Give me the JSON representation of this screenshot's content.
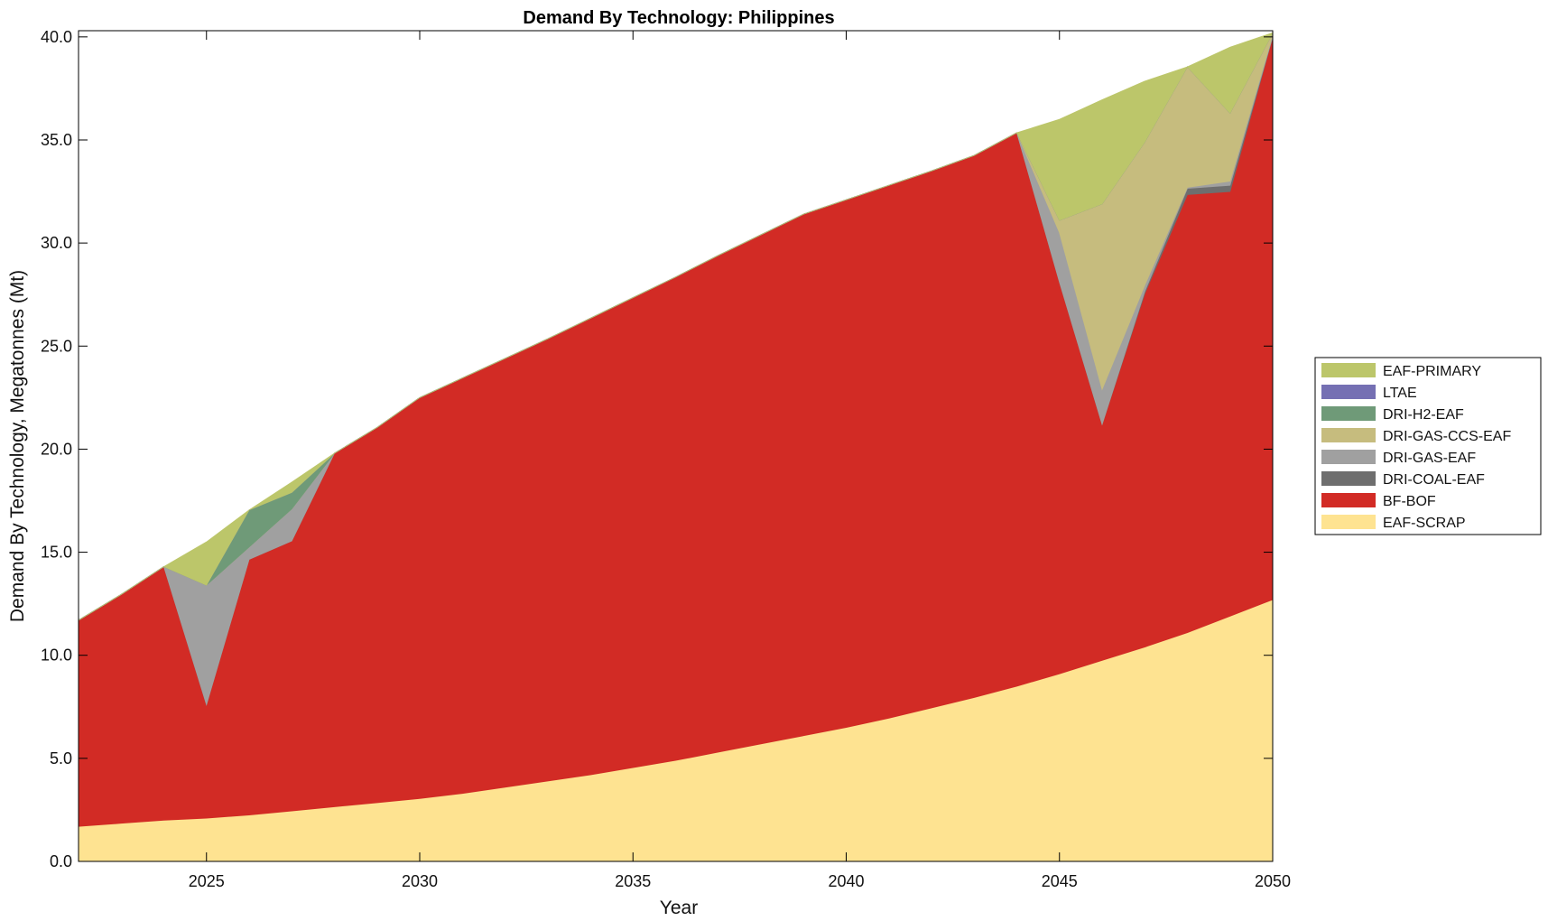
{
  "chart_data": {
    "type": "area",
    "stacked": true,
    "title": "Demand By Technology: Philippines",
    "xlabel": "Year",
    "ylabel": "Demand By Technology, Megatonnes (Mt)",
    "xlim": [
      2022,
      2050
    ],
    "ylim": [
      0,
      40.3
    ],
    "xticks": [
      2025,
      2030,
      2035,
      2040,
      2045,
      2050
    ],
    "xtick_labels": [
      "2025",
      "2030",
      "2035",
      "2040",
      "2045",
      "2050"
    ],
    "yticks": [
      0,
      5,
      10,
      15,
      20,
      25,
      30,
      35,
      40
    ],
    "ytick_labels": [
      "0.0",
      "5.0",
      "10.0",
      "15.0",
      "20.0",
      "25.0",
      "30.0",
      "35.0",
      "40.0"
    ],
    "legend_position": "right",
    "x": [
      2022,
      2023,
      2024,
      2025,
      2026,
      2027,
      2028,
      2029,
      2030,
      2031,
      2032,
      2033,
      2034,
      2035,
      2036,
      2037,
      2038,
      2039,
      2040,
      2041,
      2042,
      2043,
      2044,
      2045,
      2046,
      2047,
      2048,
      2049,
      2050
    ],
    "series": [
      {
        "name": "EAF-SCRAP",
        "color": "#fee391",
        "values": [
          1.7,
          1.85,
          2.0,
          2.1,
          2.25,
          2.45,
          2.65,
          2.85,
          3.05,
          3.3,
          3.6,
          3.9,
          4.2,
          4.55,
          4.9,
          5.3,
          5.7,
          6.1,
          6.5,
          6.95,
          7.45,
          7.95,
          8.5,
          9.1,
          9.75,
          10.4,
          11.1,
          11.9,
          12.7
        ]
      },
      {
        "name": "BF-BOF",
        "color": "#d22b25",
        "values": [
          10.0,
          11.1,
          12.3,
          5.5,
          12.4,
          13.1,
          17.15,
          18.2,
          19.45,
          20.15,
          20.8,
          21.45,
          22.15,
          22.8,
          23.45,
          24.1,
          24.7,
          25.3,
          25.6,
          25.85,
          26.05,
          26.3,
          26.85,
          19.0,
          11.45,
          17.15,
          21.25,
          20.6,
          27.3
        ]
      },
      {
        "name": "DRI-COAL-EAF",
        "color": "#6e6e6e",
        "values": [
          0,
          0,
          0,
          0,
          0,
          0,
          0,
          0,
          0,
          0,
          0,
          0,
          0,
          0,
          0,
          0,
          0,
          0,
          0,
          0,
          0,
          0,
          0,
          0,
          0,
          0.1,
          0.3,
          0.3,
          0
        ]
      },
      {
        "name": "DRI-GAS-EAF",
        "color": "#a0a0a0",
        "values": [
          0,
          0,
          0,
          5.8,
          0.6,
          1.55,
          0,
          0,
          0,
          0,
          0,
          0,
          0,
          0,
          0,
          0,
          0,
          0,
          0,
          0,
          0,
          0,
          0,
          2.4,
          1.7,
          0.3,
          0.05,
          0.2,
          0.1
        ]
      },
      {
        "name": "DRI-GAS-CCS-EAF",
        "color": "#c6bc7e",
        "values": [
          0,
          0,
          0,
          0,
          0,
          0,
          0,
          0,
          0,
          0,
          0,
          0,
          0,
          0,
          0,
          0,
          0,
          0,
          0,
          0,
          0,
          0,
          0,
          0.6,
          9.0,
          6.95,
          5.85,
          3.3,
          0.1
        ]
      },
      {
        "name": "DRI-H2-EAF",
        "color": "#6f9a78",
        "values": [
          0,
          0,
          0,
          0,
          1.8,
          0.8,
          0,
          0,
          0,
          0,
          0,
          0,
          0,
          0,
          0,
          0,
          0,
          0,
          0,
          0,
          0,
          0,
          0,
          0,
          0,
          0,
          0,
          0,
          0
        ]
      },
      {
        "name": "LTAE",
        "color": "#7570b3",
        "values": [
          0,
          0,
          0,
          0,
          0,
          0,
          0,
          0,
          0,
          0,
          0,
          0,
          0,
          0,
          0,
          0,
          0,
          0,
          0,
          0,
          0,
          0,
          0,
          0,
          0,
          0,
          0,
          0,
          0
        ]
      },
      {
        "name": "EAF-PRIMARY",
        "color": "#bcc66a",
        "values": [
          0,
          0,
          0,
          2.1,
          0,
          0.5,
          0,
          0,
          0,
          0,
          0,
          0,
          0,
          0,
          0,
          0,
          0,
          0,
          0,
          0,
          0,
          0,
          0,
          4.9,
          5.05,
          2.95,
          0,
          3.2,
          0
        ]
      }
    ],
    "legend_order": [
      "EAF-PRIMARY",
      "LTAE",
      "DRI-H2-EAF",
      "DRI-GAS-CCS-EAF",
      "DRI-GAS-EAF",
      "DRI-COAL-EAF",
      "BF-BOF",
      "EAF-SCRAP"
    ]
  }
}
